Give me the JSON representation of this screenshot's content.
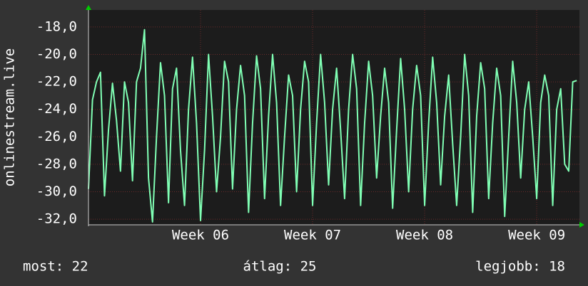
{
  "chart_data": {
    "type": "line",
    "y_label": "onlinestream.live",
    "x": [
      0,
      0.25,
      0.5,
      0.75,
      1,
      1.25,
      1.5,
      1.75,
      2,
      2.25,
      2.5,
      2.75,
      3,
      3.25,
      3.5,
      3.75,
      4,
      4.25,
      4.5,
      4.75,
      5,
      5.25,
      5.5,
      5.75,
      6,
      6.25,
      6.5,
      6.75,
      7,
      7.25,
      7.5,
      7.75,
      8,
      8.25,
      8.5,
      8.75,
      9,
      9.25,
      9.5,
      9.75,
      10,
      10.25,
      10.5,
      10.75,
      11,
      11.25,
      11.5,
      11.75,
      12,
      12.25,
      12.5,
      12.75,
      13,
      13.25,
      13.5,
      13.75,
      14,
      14.25,
      14.5,
      14.75,
      15,
      15.25,
      15.5,
      15.75,
      16,
      16.25,
      16.5,
      16.75,
      17,
      17.25,
      17.5,
      17.75,
      18,
      18.25,
      18.5,
      18.75,
      19,
      19.25,
      19.5,
      19.75,
      20,
      20.25,
      20.5,
      20.75,
      21,
      21.25,
      21.5,
      21.75,
      22,
      22.25,
      22.5,
      22.75,
      23,
      23.25,
      23.5,
      23.75,
      24,
      24.25,
      24.5,
      24.75,
      25,
      25.25,
      25.5,
      25.75,
      26,
      26.25,
      26.5,
      26.75,
      27,
      27.25,
      27.5,
      27.75,
      28,
      28.25,
      28.5,
      28.75,
      29,
      29.25,
      29.5,
      29.75,
      30,
      30.25,
      30.5
    ],
    "series": [
      {
        "color": "#80ffb4",
        "values": [
          -29.8,
          -23.3,
          -22.0,
          -21.3,
          -30.3,
          -25.5,
          -22.1,
          -24.8,
          -28.5,
          -22.0,
          -23.5,
          -29.2,
          -22.0,
          -21.0,
          -18.2,
          -29.0,
          -32.2,
          -26.0,
          -20.6,
          -23.0,
          -30.8,
          -22.5,
          -21.0,
          -27.0,
          -31.0,
          -24.0,
          -20.2,
          -25.0,
          -32.1,
          -27.0,
          -20.0,
          -24.5,
          -30.0,
          -26.0,
          -20.5,
          -22.0,
          -29.8,
          -24.0,
          -20.8,
          -23.0,
          -31.5,
          -25.0,
          -20.1,
          -22.5,
          -30.5,
          -24.5,
          -20.0,
          -23.5,
          -31.0,
          -26.0,
          -21.5,
          -23.0,
          -30.0,
          -24.0,
          -20.5,
          -22.0,
          -31.0,
          -25.0,
          -20.0,
          -23.5,
          -29.5,
          -24.0,
          -21.0,
          -25.5,
          -30.5,
          -24.0,
          -20.0,
          -22.5,
          -31.0,
          -25.0,
          -20.5,
          -23.0,
          -29.0,
          -24.5,
          -21.0,
          -23.5,
          -31.2,
          -25.5,
          -20.3,
          -24.0,
          -30.0,
          -24.0,
          -20.8,
          -23.0,
          -31.0,
          -25.0,
          -20.2,
          -23.5,
          -29.5,
          -24.5,
          -21.5,
          -26.5,
          -31.0,
          -26.0,
          -20.0,
          -23.0,
          -31.5,
          -24.5,
          -20.6,
          -22.5,
          -30.5,
          -25.0,
          -21.0,
          -23.0,
          -31.8,
          -26.0,
          -20.5,
          -23.5,
          -29.0,
          -24.0,
          -22.0,
          -26.0,
          -30.5,
          -23.5,
          -21.5,
          -23.0,
          -31.0,
          -24.0,
          -22.5,
          -28.0,
          -28.5,
          -22.0,
          -21.9
        ]
      }
    ],
    "xlim": [
      0,
      30.67
    ],
    "xticks": [
      {
        "value": 7,
        "label": "Week 06"
      },
      {
        "value": 14,
        "label": "Week 07"
      },
      {
        "value": 21,
        "label": "Week 08"
      },
      {
        "value": 28,
        "label": "Week 09"
      }
    ],
    "ylim": [
      -32.41,
      -16.76
    ],
    "yticks": [
      {
        "value": -18,
        "label": "-18,0"
      },
      {
        "value": -20,
        "label": "-20,0"
      },
      {
        "value": -22,
        "label": "-22,0"
      },
      {
        "value": -24,
        "label": "-24,0"
      },
      {
        "value": -26,
        "label": "-26,0"
      },
      {
        "value": -28,
        "label": "-28,0"
      },
      {
        "value": -30,
        "label": "-30,0"
      },
      {
        "value": -32,
        "label": "-32,0"
      }
    ],
    "grid": true,
    "footer": [
      "most: 22",
      "átlag: 25",
      "legjobb: 18"
    ]
  }
}
